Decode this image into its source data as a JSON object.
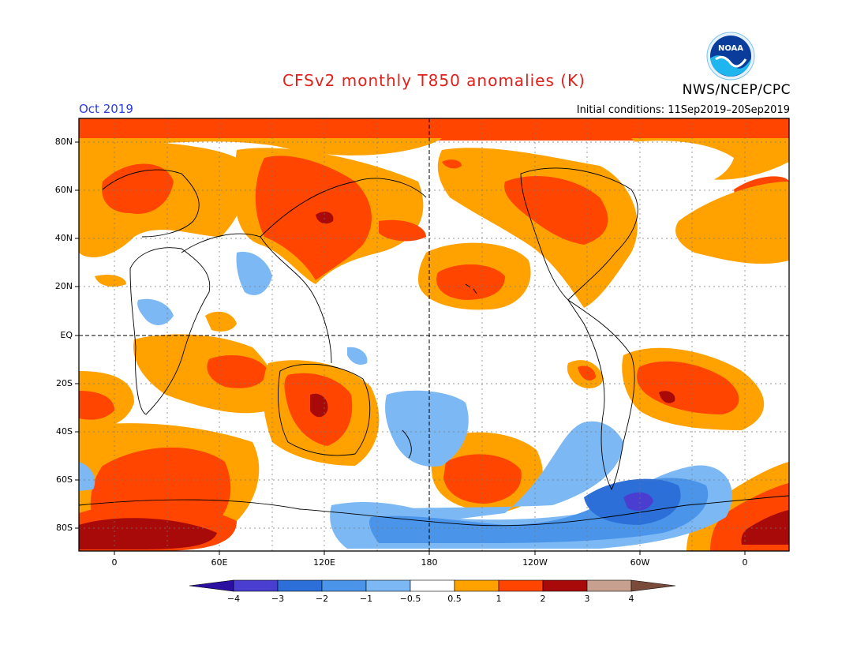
{
  "header": {
    "title": "CFSv2 monthly T850 anomalies (K)",
    "agency": "NWS/NCEP/CPC",
    "month": "Oct 2019",
    "initial_conditions": "Initial conditions: 11Sep2019–20Sep2019",
    "logo_text": "NOAA"
  },
  "map": {
    "projection": "cylindrical equidistant",
    "lat_labels": [
      "80N",
      "60N",
      "40N",
      "20N",
      "EQ",
      "20S",
      "40S",
      "60S",
      "80S"
    ],
    "lon_labels": [
      "0",
      "60E",
      "120E",
      "180",
      "120W",
      "60W",
      "0"
    ],
    "reference_lines": [
      "EQ",
      "180"
    ]
  },
  "colorbar": {
    "labels": [
      "−4",
      "−3",
      "−2",
      "−1",
      "−0.5",
      "0.5",
      "1",
      "2",
      "3",
      "4"
    ],
    "colors": {
      "below_min": "#2a0fa0",
      "bins": [
        "#4a3ed0",
        "#2c6fd8",
        "#4a94ea",
        "#7cb8f4",
        "#ffffff",
        "#ffa200",
        "#ff4500",
        "#a80a0a",
        "#c8a090"
      ],
      "above_max": "#7a4a3a"
    }
  },
  "colors": {
    "title": "#e0201a",
    "month": "#2a3de0"
  }
}
